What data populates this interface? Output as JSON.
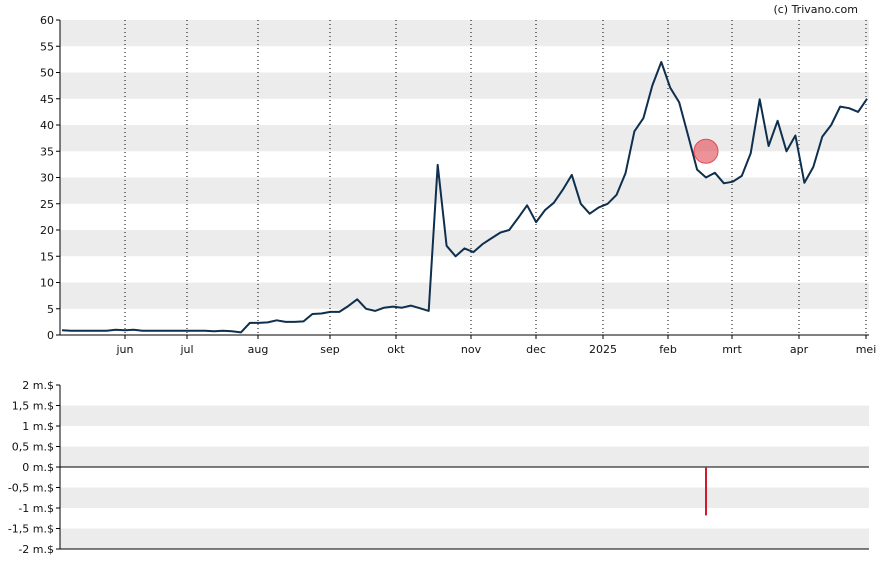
{
  "watermark": "(c) Trivano.com",
  "colors": {
    "price_line": "#0e2f4d",
    "band": "#ececec",
    "event_circle": "#e34a55",
    "volume_bar": "#d21a2c",
    "axis": "#000000"
  },
  "chart_data": [
    {
      "type": "line",
      "title": "",
      "xlabel": "",
      "ylabel": "",
      "ylim": [
        0,
        60
      ],
      "y_ticks": [
        "0",
        "5",
        "10",
        "15",
        "20",
        "25",
        "30",
        "35",
        "40",
        "45",
        "50",
        "55",
        "60"
      ],
      "x_tick_labels": [
        "jun",
        "jul",
        "aug",
        "sep",
        "okt",
        "nov",
        "dec",
        "2025",
        "feb",
        "mrt",
        "apr",
        "mei"
      ],
      "grid": "alternating horizontal bands, dotted vertical lines at month ticks",
      "marker": {
        "x_index": 72,
        "y": 35.0,
        "shape": "circle"
      },
      "series": [
        {
          "values": [
            0.9,
            0.8,
            0.8,
            0.8,
            0.8,
            0.8,
            1.0,
            0.9,
            1.0,
            0.8,
            0.8,
            0.8,
            0.8,
            0.8,
            0.8,
            0.8,
            0.8,
            0.7,
            0.8,
            0.7,
            0.5,
            2.3,
            2.3,
            2.4,
            2.8,
            2.5,
            2.5,
            2.6,
            4.0,
            4.1,
            4.4,
            4.4,
            5.5,
            6.8,
            5.0,
            4.6,
            5.2,
            5.4,
            5.2,
            5.6,
            5.1,
            4.6,
            32.4,
            17.0,
            15.0,
            16.5,
            15.8,
            17.3,
            18.4,
            19.5,
            20.0,
            22.3,
            24.7,
            21.5,
            23.8,
            25.2,
            27.7,
            30.5,
            25.0,
            23.1,
            24.3,
            25.0,
            26.7,
            30.8,
            38.8,
            41.3,
            47.5,
            52.0,
            47.1,
            44.3,
            38.0,
            31.5,
            30.0,
            30.9,
            28.9,
            29.2,
            30.3,
            34.6,
            44.9,
            36.0,
            40.8,
            35.0,
            38.0,
            29.0,
            32.0,
            37.8,
            40.0,
            43.5,
            43.2,
            42.5,
            45.0
          ]
        }
      ]
    },
    {
      "type": "bar",
      "title": "",
      "xlabel": "",
      "ylabel": "",
      "ylim": [
        -2,
        2
      ],
      "y_ticks": [
        "2 m.$",
        "1,5 m.$",
        "1 m.$",
        "0,5 m.$",
        "0 m.$",
        "-0,5 m.$",
        "-1 m.$",
        "-1,5 m.$",
        "-2 m.$"
      ],
      "bars": [
        {
          "x_index": 72,
          "value": -1.18
        }
      ]
    }
  ]
}
